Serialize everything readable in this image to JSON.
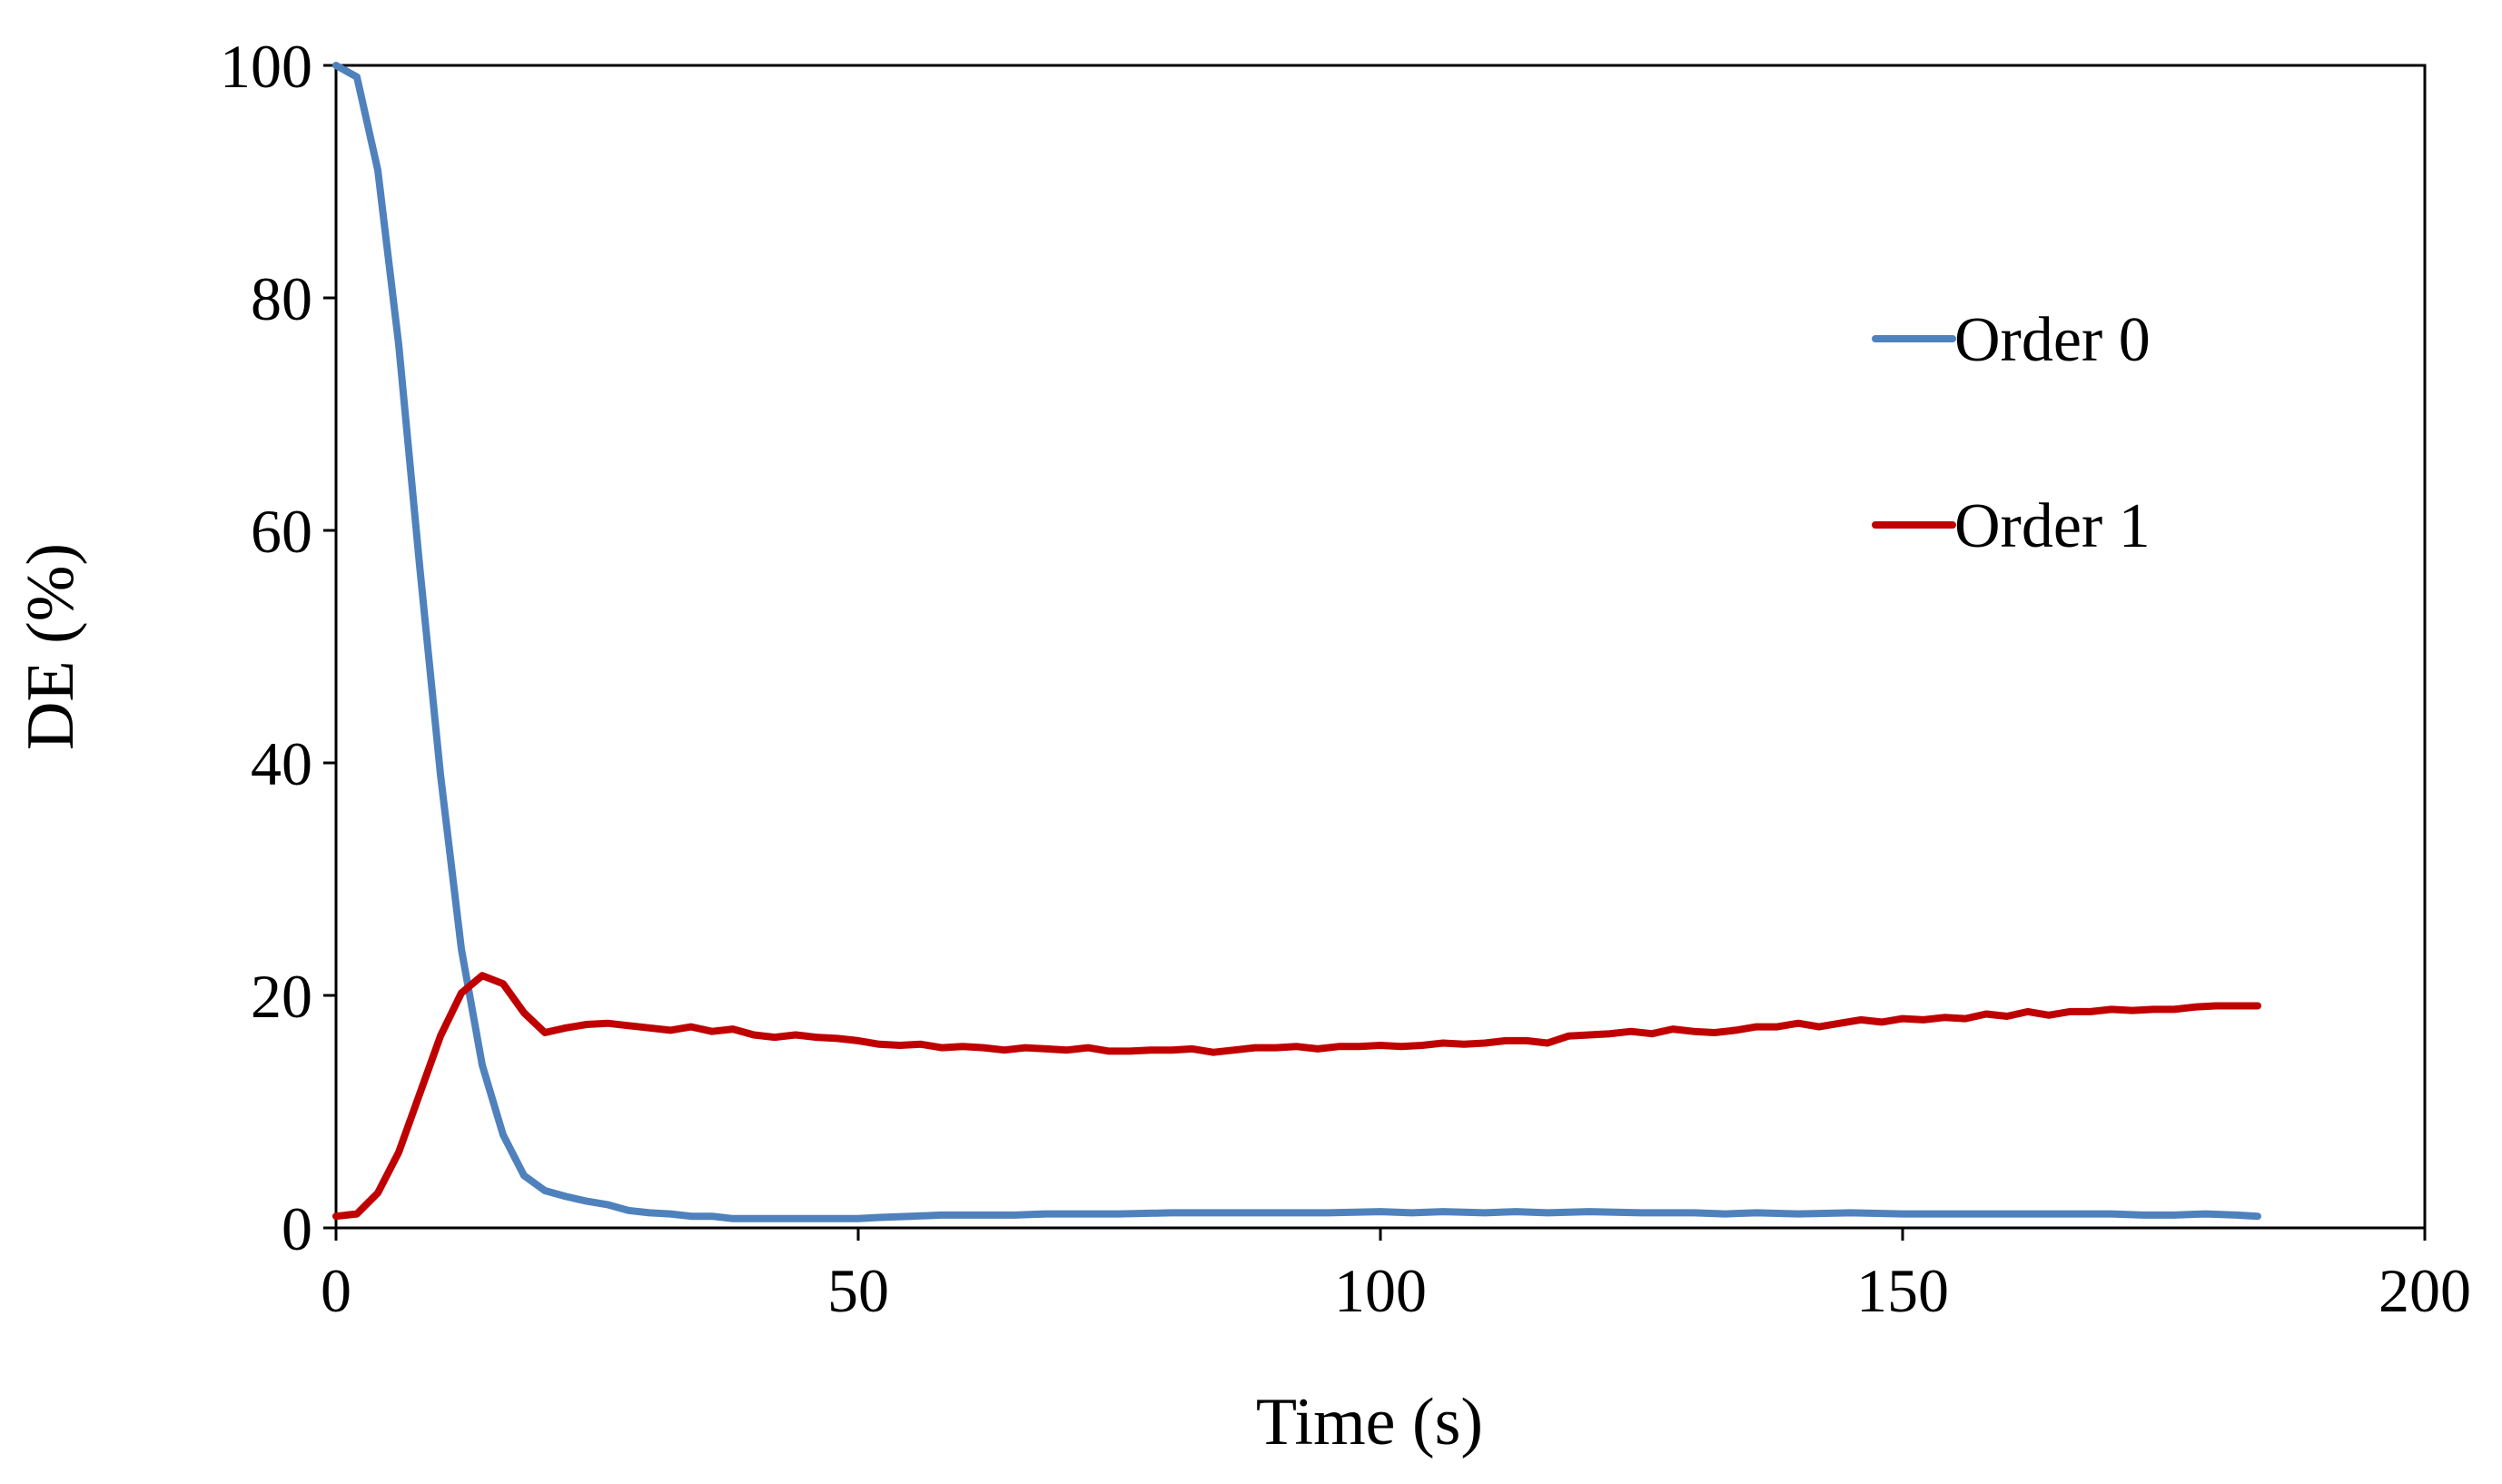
{
  "chart_data": {
    "type": "line",
    "title": "",
    "xlabel": "Time (s)",
    "ylabel": "DE  (%)",
    "xlim": [
      0,
      200
    ],
    "ylim": [
      0,
      100
    ],
    "xticks": [
      0,
      50,
      100,
      150,
      200
    ],
    "yticks": [
      0,
      20,
      40,
      60,
      80,
      100
    ],
    "grid": false,
    "legend_position": "top-right",
    "series": [
      {
        "name": "Order 0",
        "color": "#4F81BD",
        "points": [
          [
            0,
            100
          ],
          [
            2,
            99
          ],
          [
            4,
            91
          ],
          [
            6,
            76
          ],
          [
            8,
            57
          ],
          [
            10,
            39
          ],
          [
            12,
            24
          ],
          [
            14,
            14
          ],
          [
            16,
            8
          ],
          [
            18,
            4.5
          ],
          [
            20,
            3.2
          ],
          [
            22,
            2.7
          ],
          [
            24,
            2.3
          ],
          [
            26,
            2.0
          ],
          [
            28,
            1.5
          ],
          [
            30,
            1.3
          ],
          [
            32,
            1.2
          ],
          [
            34,
            1.0
          ],
          [
            36,
            1.0
          ],
          [
            38,
            0.8
          ],
          [
            40,
            0.8
          ],
          [
            45,
            0.8
          ],
          [
            50,
            0.8
          ],
          [
            52,
            0.9
          ],
          [
            55,
            1.0
          ],
          [
            58,
            1.1
          ],
          [
            60,
            1.1
          ],
          [
            65,
            1.1
          ],
          [
            68,
            1.2
          ],
          [
            70,
            1.2
          ],
          [
            75,
            1.2
          ],
          [
            80,
            1.3
          ],
          [
            85,
            1.3
          ],
          [
            90,
            1.3
          ],
          [
            95,
            1.3
          ],
          [
            100,
            1.4
          ],
          [
            103,
            1.3
          ],
          [
            106,
            1.4
          ],
          [
            110,
            1.3
          ],
          [
            113,
            1.4
          ],
          [
            116,
            1.3
          ],
          [
            120,
            1.4
          ],
          [
            125,
            1.3
          ],
          [
            130,
            1.3
          ],
          [
            133,
            1.2
          ],
          [
            136,
            1.3
          ],
          [
            140,
            1.2
          ],
          [
            145,
            1.3
          ],
          [
            150,
            1.2
          ],
          [
            155,
            1.2
          ],
          [
            160,
            1.2
          ],
          [
            165,
            1.2
          ],
          [
            170,
            1.2
          ],
          [
            173,
            1.1
          ],
          [
            176,
            1.1
          ],
          [
            179,
            1.2
          ],
          [
            182,
            1.1
          ],
          [
            184,
            1.0
          ]
        ]
      },
      {
        "name": "Order 1",
        "color": "#C00000",
        "points": [
          [
            0,
            1.0
          ],
          [
            2,
            1.2
          ],
          [
            4,
            3.0
          ],
          [
            6,
            6.5
          ],
          [
            8,
            11.5
          ],
          [
            10,
            16.5
          ],
          [
            12,
            20.2
          ],
          [
            14,
            21.7
          ],
          [
            16,
            21.0
          ],
          [
            18,
            18.5
          ],
          [
            20,
            16.8
          ],
          [
            22,
            17.2
          ],
          [
            24,
            17.5
          ],
          [
            26,
            17.6
          ],
          [
            28,
            17.4
          ],
          [
            30,
            17.2
          ],
          [
            32,
            17.0
          ],
          [
            34,
            17.3
          ],
          [
            36,
            16.9
          ],
          [
            38,
            17.1
          ],
          [
            40,
            16.6
          ],
          [
            42,
            16.4
          ],
          [
            44,
            16.6
          ],
          [
            46,
            16.4
          ],
          [
            48,
            16.3
          ],
          [
            50,
            16.1
          ],
          [
            52,
            15.8
          ],
          [
            54,
            15.7
          ],
          [
            56,
            15.8
          ],
          [
            58,
            15.5
          ],
          [
            60,
            15.6
          ],
          [
            62,
            15.5
          ],
          [
            64,
            15.3
          ],
          [
            66,
            15.5
          ],
          [
            68,
            15.4
          ],
          [
            70,
            15.3
          ],
          [
            72,
            15.5
          ],
          [
            74,
            15.2
          ],
          [
            76,
            15.2
          ],
          [
            78,
            15.3
          ],
          [
            80,
            15.3
          ],
          [
            82,
            15.4
          ],
          [
            84,
            15.1
          ],
          [
            86,
            15.3
          ],
          [
            88,
            15.5
          ],
          [
            90,
            15.5
          ],
          [
            92,
            15.6
          ],
          [
            94,
            15.4
          ],
          [
            96,
            15.6
          ],
          [
            98,
            15.6
          ],
          [
            100,
            15.7
          ],
          [
            102,
            15.6
          ],
          [
            104,
            15.7
          ],
          [
            106,
            15.9
          ],
          [
            108,
            15.8
          ],
          [
            110,
            15.9
          ],
          [
            112,
            16.1
          ],
          [
            114,
            16.1
          ],
          [
            116,
            15.9
          ],
          [
            118,
            16.5
          ],
          [
            120,
            16.6
          ],
          [
            122,
            16.7
          ],
          [
            124,
            16.9
          ],
          [
            126,
            16.7
          ],
          [
            128,
            17.1
          ],
          [
            130,
            16.9
          ],
          [
            132,
            16.8
          ],
          [
            134,
            17.0
          ],
          [
            136,
            17.3
          ],
          [
            138,
            17.3
          ],
          [
            140,
            17.6
          ],
          [
            142,
            17.3
          ],
          [
            144,
            17.6
          ],
          [
            146,
            17.9
          ],
          [
            148,
            17.7
          ],
          [
            150,
            18.0
          ],
          [
            152,
            17.9
          ],
          [
            154,
            18.1
          ],
          [
            156,
            18.0
          ],
          [
            158,
            18.4
          ],
          [
            160,
            18.2
          ],
          [
            162,
            18.6
          ],
          [
            164,
            18.3
          ],
          [
            166,
            18.6
          ],
          [
            168,
            18.6
          ],
          [
            170,
            18.8
          ],
          [
            172,
            18.7
          ],
          [
            174,
            18.8
          ],
          [
            176,
            18.8
          ],
          [
            178,
            19.0
          ],
          [
            180,
            19.1
          ],
          [
            182,
            19.1
          ],
          [
            184,
            19.1
          ]
        ]
      }
    ]
  }
}
